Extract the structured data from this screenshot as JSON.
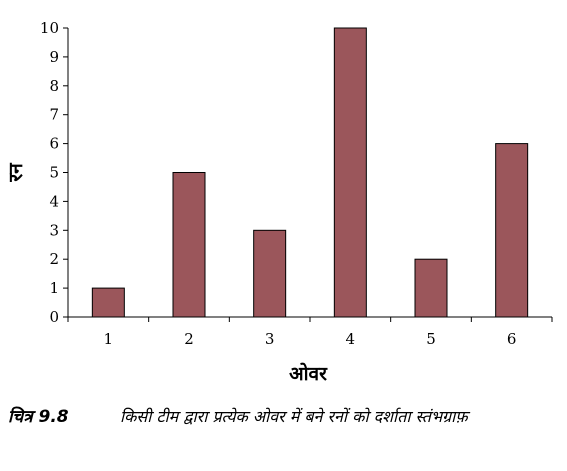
{
  "chart_data": {
    "type": "bar",
    "categories": [
      "1",
      "2",
      "3",
      "4",
      "5",
      "6"
    ],
    "values": [
      1,
      5,
      3,
      10,
      2,
      6
    ],
    "xlabel": "ओवर",
    "ylabel": "रन",
    "ylim": [
      0,
      10
    ],
    "yticks": [
      0,
      1,
      2,
      3,
      4,
      5,
      6,
      7,
      8,
      9,
      10
    ],
    "grid": false,
    "bar_color": "#9b565b",
    "bar_edge_color": "#000000"
  },
  "caption": {
    "label": "चित्र 9.8",
    "text": "किसी टीम द्वारा प्रत्येक ओवर में बने रनों को दर्शाता स्तंभग्राफ़"
  }
}
